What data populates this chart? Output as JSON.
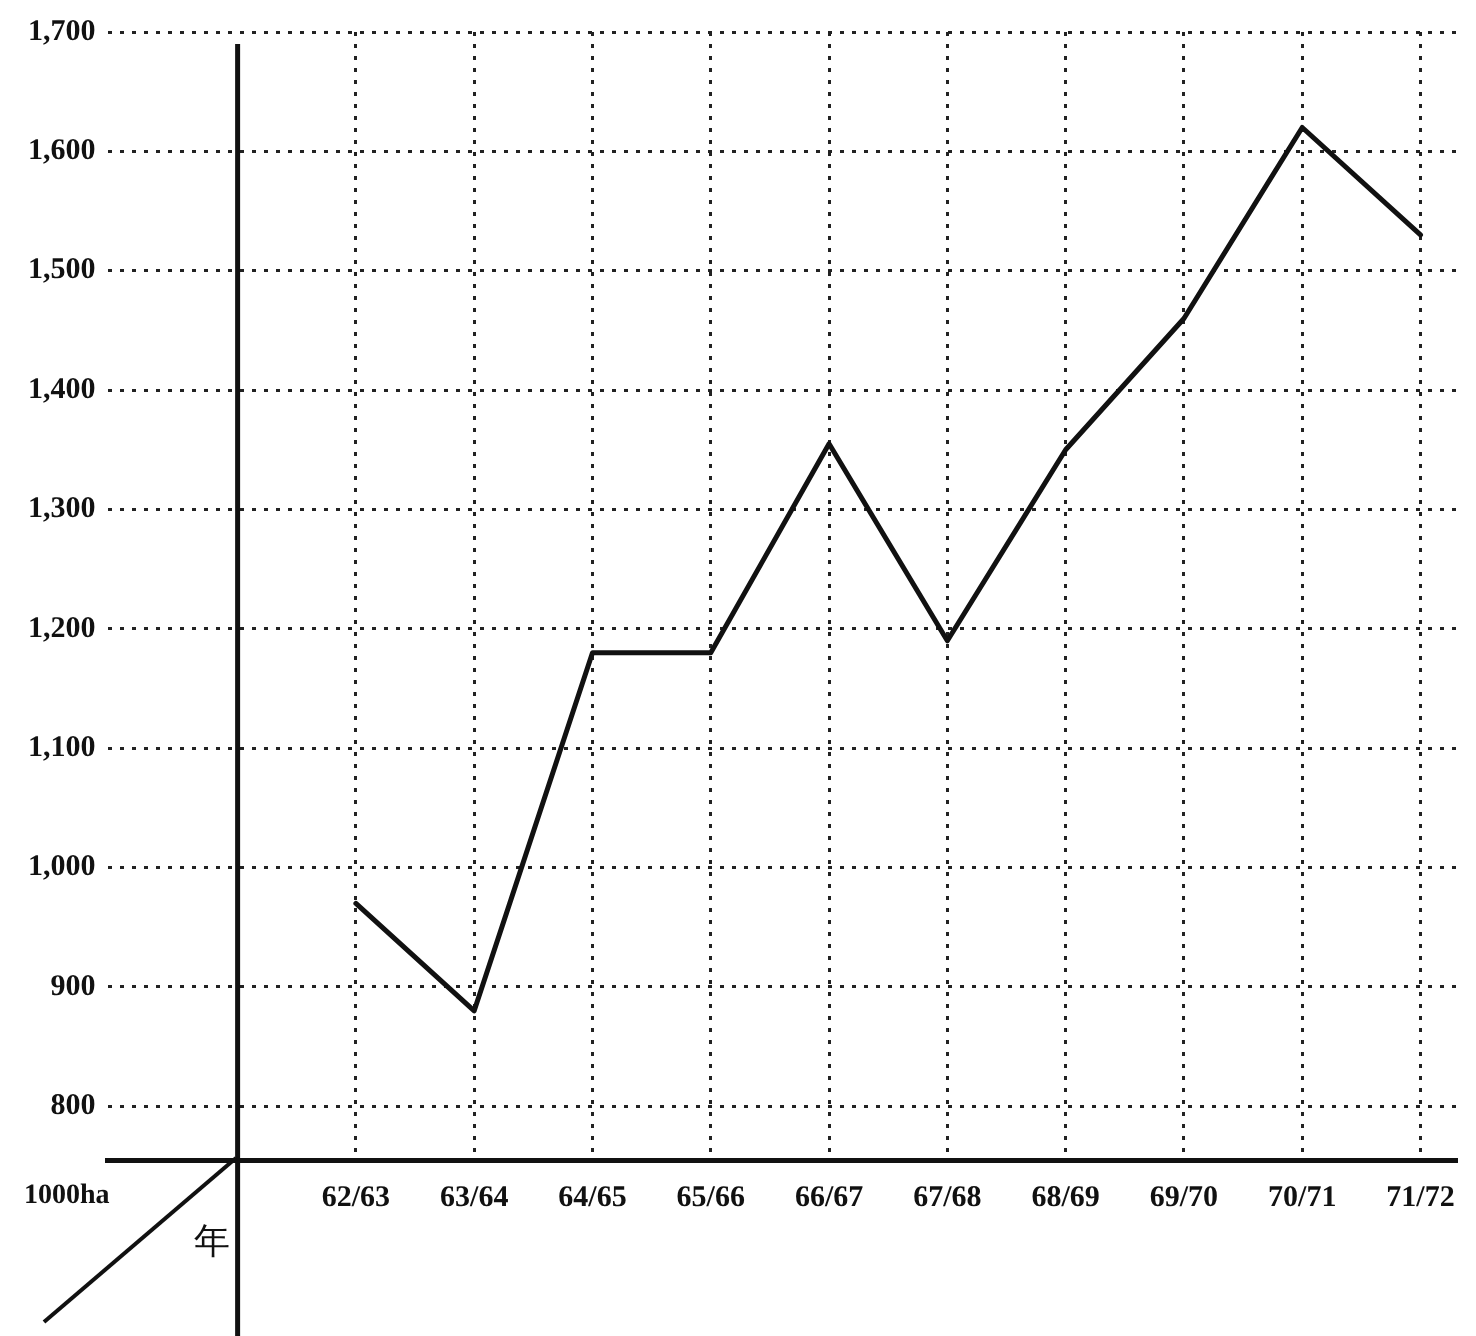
{
  "chart_data": {
    "type": "line",
    "xlabel": "年",
    "ylabel": "1000ha",
    "categories": [
      "62/63",
      "63/64",
      "64/65",
      "65/66",
      "66/67",
      "67/68",
      "68/69",
      "69/70",
      "70/71",
      "71/72"
    ],
    "series": [
      {
        "color": "#111111",
        "values": [
          970,
          880,
          1180,
          1180,
          1355,
          1190,
          1350,
          1460,
          1620,
          1530
        ]
      }
    ],
    "ylim": [
      755,
      1700
    ],
    "yticks": [
      {
        "value": 800,
        "label": "800"
      },
      {
        "value": 900,
        "label": "900"
      },
      {
        "value": 1000,
        "label": "1,000"
      },
      {
        "value": 1100,
        "label": "1,100"
      },
      {
        "value": 1200,
        "label": "1,200"
      },
      {
        "value": 1300,
        "label": "1,300"
      },
      {
        "value": 1400,
        "label": "1,400"
      },
      {
        "value": 1500,
        "label": "1,500"
      },
      {
        "value": 1600,
        "label": "1,600"
      },
      {
        "value": 1700,
        "label": "1,700"
      }
    ],
    "grid": true,
    "legend": false,
    "marker": "none",
    "line_style": "solid"
  }
}
